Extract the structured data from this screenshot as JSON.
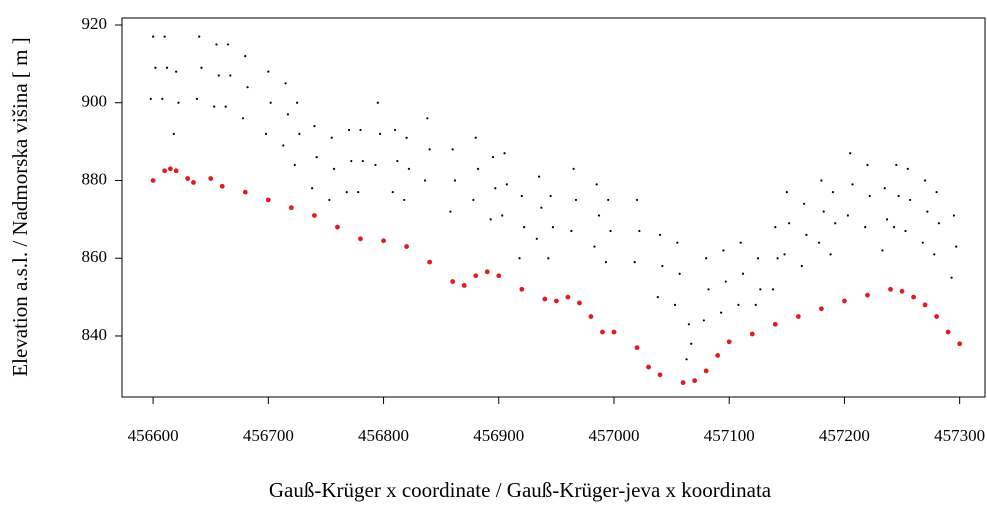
{
  "chart_data": {
    "type": "scatter",
    "xlabel": "Gauß-Krüger x coordinate / Gauß-Krüger-jeva x koordinata",
    "ylabel": "Elevation a.s.l. / Nadmorska višina [ m ]",
    "xlim": [
      456573,
      457322
    ],
    "ylim": [
      824.3,
      921.8
    ],
    "xticks": [
      456600,
      456700,
      456800,
      456900,
      457000,
      457100,
      457200,
      457300
    ],
    "yticks": [
      840,
      860,
      880,
      900,
      920
    ],
    "series": [
      {
        "color": "#000000",
        "x": [
          456600,
          456602,
          456598,
          456610,
          456612,
          456608,
          456620,
          456622,
          456618,
          456640,
          456642,
          456638,
          456655,
          456657,
          456653,
          456665,
          456667,
          456663,
          456680,
          456682,
          456678,
          456700,
          456702,
          456698,
          456715,
          456717,
          456713,
          456725,
          456727,
          456723,
          456740,
          456742,
          456738,
          456755,
          456757,
          456753,
          456770,
          456772,
          456768,
          456780,
          456782,
          456778,
          456795,
          456797,
          456793,
          456810,
          456812,
          456808,
          456820,
          456822,
          456818,
          456838,
          456840,
          456836,
          456860,
          456862,
          456858,
          456880,
          456882,
          456878,
          456895,
          456897,
          456893,
          456905,
          456907,
          456903,
          456920,
          456922,
          456918,
          456935,
          456937,
          456933,
          456945,
          456947,
          456943,
          456965,
          456967,
          456963,
          456985,
          456987,
          456983,
          456995,
          456997,
          456993,
          457020,
          457022,
          457018,
          457040,
          457042,
          457038,
          457055,
          457057,
          457053,
          457065,
          457067,
          457063,
          457080,
          457082,
          457078,
          457095,
          457097,
          457093,
          457110,
          457112,
          457108,
          457125,
          457127,
          457123,
          457140,
          457142,
          457138,
          457150,
          457152,
          457148,
          457165,
          457167,
          457163,
          457180,
          457182,
          457178,
          457190,
          457192,
          457188,
          457205,
          457207,
          457203,
          457220,
          457222,
          457218,
          457235,
          457237,
          457233,
          457245,
          457247,
          457243,
          457255,
          457257,
          457253,
          457270,
          457272,
          457268,
          457280,
          457282,
          457278,
          457295,
          457297,
          457293
        ],
        "y": [
          917,
          909,
          901,
          917,
          909,
          901,
          908,
          900,
          892,
          917,
          909,
          901,
          915,
          907,
          899,
          915,
          907,
          899,
          912,
          904,
          896,
          908,
          900,
          892,
          905,
          897,
          889,
          900,
          892,
          884,
          894,
          886,
          878,
          891,
          883,
          875,
          893,
          885,
          877,
          893,
          885,
          877,
          900,
          892,
          884,
          893,
          885,
          877,
          891,
          883,
          875,
          896,
          888,
          880,
          888,
          880,
          872,
          891,
          883,
          875,
          886,
          878,
          870,
          887,
          879,
          871,
          876,
          868,
          860,
          881,
          873,
          865,
          876,
          868,
          860,
          883,
          875,
          867,
          879,
          871,
          863,
          875,
          867,
          859,
          875,
          867,
          859,
          866,
          858,
          850,
          864,
          856,
          848,
          843,
          838,
          834,
          860,
          852,
          844,
          862,
          854,
          846,
          864,
          856,
          848,
          860,
          852,
          848,
          868,
          860,
          852,
          877,
          869,
          861,
          874,
          866,
          858,
          880,
          872,
          864,
          877,
          869,
          861,
          887,
          879,
          871,
          884,
          876,
          868,
          878,
          870,
          862,
          884,
          876,
          868,
          883,
          875,
          867,
          880,
          872,
          864,
          877,
          869,
          861,
          871,
          863,
          855
        ]
      },
      {
        "color": "#e41a1c",
        "x": [
          456600,
          456610,
          456615,
          456620,
          456630,
          456635,
          456650,
          456660,
          456680,
          456700,
          456720,
          456740,
          456760,
          456780,
          456800,
          456820,
          456840,
          456860,
          456870,
          456880,
          456890,
          456900,
          456920,
          456940,
          456950,
          456960,
          456970,
          456980,
          456990,
          457000,
          457020,
          457030,
          457040,
          457060,
          457070,
          457080,
          457090,
          457100,
          457120,
          457140,
          457160,
          457180,
          457200,
          457220,
          457240,
          457250,
          457260,
          457270,
          457280,
          457290,
          457300
        ],
        "y": [
          880,
          882.5,
          883,
          882.5,
          880.5,
          879.5,
          880.5,
          878.5,
          877,
          875,
          873,
          871,
          868,
          865,
          864.5,
          863,
          859,
          854,
          853,
          855.5,
          856.5,
          855.5,
          852,
          849.5,
          849,
          850,
          848.5,
          845,
          841,
          841,
          837,
          832,
          830,
          828,
          828.5,
          831,
          835,
          838.5,
          840.5,
          843,
          845,
          847,
          849,
          850.5,
          852,
          851.5,
          850,
          848,
          845,
          841,
          838
        ]
      }
    ]
  }
}
